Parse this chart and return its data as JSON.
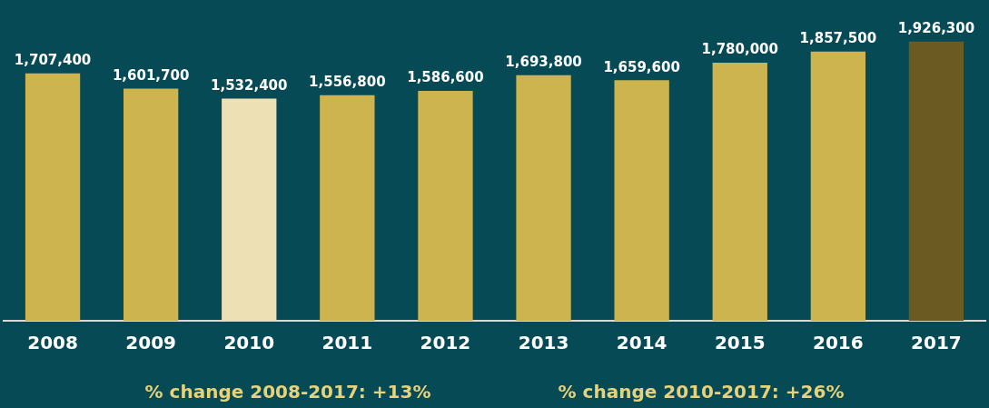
{
  "chart_data": {
    "type": "bar",
    "categories": [
      "2008",
      "2009",
      "2010",
      "2011",
      "2012",
      "2013",
      "2014",
      "2015",
      "2016",
      "2017"
    ],
    "values": [
      1707400,
      1601700,
      1532400,
      1556800,
      1586600,
      1693800,
      1659600,
      1780000,
      1857500,
      1926300
    ],
    "colors": [
      "#cdb44f",
      "#cdb44f",
      "#ede0b5",
      "#cdb44f",
      "#cdb44f",
      "#cdb44f",
      "#cdb44f",
      "#cdb44f",
      "#cdb44f",
      "#6b5a22"
    ],
    "value_labels": [
      "1,707,400",
      "1,601,700",
      "1,532,400",
      "1,556,800",
      "1,586,600",
      "1,693,800",
      "1,659,600",
      "1,780,000",
      "1,857,500",
      "1,926,300"
    ],
    "grid": false,
    "legend": false,
    "tick_labels": "x",
    "annotations": [
      "% change 2008-2017: +13%",
      "% change 2010-2017: +26%"
    ]
  }
}
